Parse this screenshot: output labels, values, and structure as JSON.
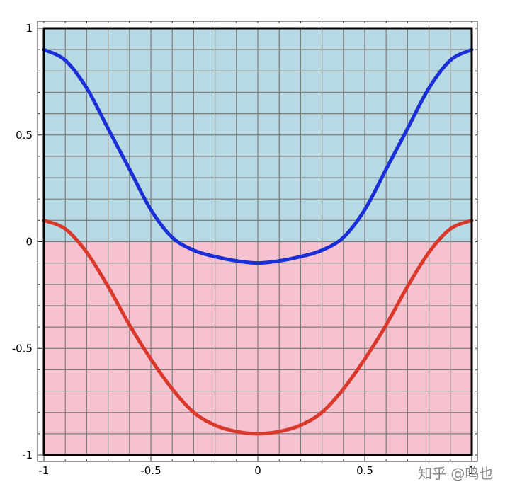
{
  "chart_data": {
    "type": "line",
    "title": "",
    "xlabel": "",
    "ylabel": "",
    "xlim": [
      -1,
      1
    ],
    "ylim": [
      -1,
      1
    ],
    "grid": true,
    "x_ticks": [
      -1,
      -0.5,
      0,
      0.5,
      1
    ],
    "x_tick_labels": [
      "-1",
      "-0.5",
      "0",
      "0.5",
      "1"
    ],
    "y_ticks": [
      1,
      0.5,
      0,
      -0.5,
      -1
    ],
    "y_tick_labels": [
      "1",
      "0.5",
      "0",
      "-0.5",
      "-1"
    ],
    "regions": [
      {
        "y_from": 0,
        "y_to": 1,
        "color": "#b7d9e3"
      },
      {
        "y_from": -1,
        "y_to": 0,
        "color": "#f6c2cf"
      }
    ],
    "series": [
      {
        "color": "#1a2fd6",
        "x": [
          -1,
          -0.9,
          -0.8,
          -0.7,
          -0.6,
          -0.5,
          -0.4,
          -0.3,
          -0.2,
          -0.1,
          0,
          0.1,
          0.2,
          0.3,
          0.4,
          0.5,
          0.6,
          0.7,
          0.8,
          0.9,
          1
        ],
        "y": [
          0.9,
          0.85,
          0.72,
          0.53,
          0.34,
          0.15,
          0.02,
          -0.04,
          -0.07,
          -0.09,
          -0.1,
          -0.09,
          -0.07,
          -0.04,
          0.02,
          0.15,
          0.34,
          0.53,
          0.72,
          0.85,
          0.9
        ]
      },
      {
        "color": "#d9382b",
        "x": [
          -1,
          -0.9,
          -0.8,
          -0.7,
          -0.6,
          -0.5,
          -0.4,
          -0.3,
          -0.2,
          -0.1,
          0,
          0.1,
          0.2,
          0.3,
          0.4,
          0.5,
          0.6,
          0.7,
          0.8,
          0.9,
          1
        ],
        "y": [
          0.1,
          0.06,
          -0.05,
          -0.21,
          -0.39,
          -0.55,
          -0.69,
          -0.8,
          -0.86,
          -0.89,
          -0.9,
          -0.89,
          -0.86,
          -0.8,
          -0.69,
          -0.55,
          -0.39,
          -0.21,
          -0.05,
          0.06,
          0.1
        ]
      }
    ]
  },
  "watermark": "知乎 @鸣也"
}
